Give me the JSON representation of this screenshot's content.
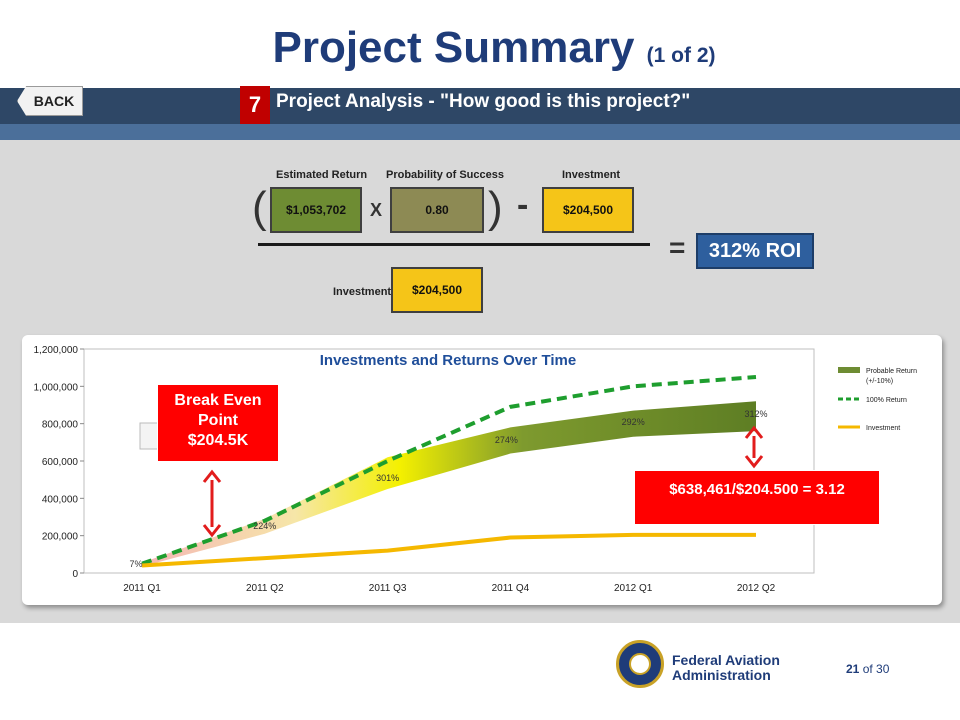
{
  "slide": {
    "title": "Project Summary",
    "title_suffix": "(1 of 2)",
    "back_label": "BACK",
    "step_number": "7",
    "step_title": "Project Analysis - \"How good is this project?\""
  },
  "formula": {
    "estimated_return_label": "Estimated Return",
    "estimated_return_value": "$1,053,702",
    "multiply_symbol": "X",
    "probability_label": "Probability of Success",
    "probability_value": "0.80",
    "minus_symbol": "-",
    "investment_label": "Investment",
    "investment_value": "$204,500",
    "open_paren": "(",
    "close_paren": ")",
    "equals_symbol": "=",
    "denominator_label": "Investment",
    "denominator_value": "$204,500",
    "roi_value": "312%  ROI"
  },
  "callouts": {
    "break_even": "Break Even Point $204.5K",
    "ratio": "$638,461/$204.500 = 3.12"
  },
  "colors": {
    "title_blue": "#1f3c79",
    "band": "#2e4766",
    "callout_red": "#ff0000",
    "return_green": "#1e9e2e",
    "investment_gold": "#f5b800"
  },
  "chart_data": {
    "type": "area",
    "title": "Investments and Returns Over Time",
    "x": [
      "2011 Q1",
      "2011 Q2",
      "2011 Q3",
      "2011 Q4",
      "2012 Q1",
      "2012 Q2"
    ],
    "yticks": [
      "0",
      "200,000",
      "400,000",
      "600,000",
      "800,000",
      "1,000,000",
      "1,200,000"
    ],
    "ylim": [
      0,
      1200000
    ],
    "series": [
      {
        "name": "100% Return",
        "values": [
          50000,
          280000,
          600000,
          890000,
          1000000,
          1050000
        ]
      },
      {
        "name": "Probable Return (+/-10%)",
        "values": [
          45000,
          250000,
          540000,
          710000,
          810000,
          840000
        ],
        "band_low": [
          35000,
          210000,
          450000,
          640000,
          730000,
          760000
        ],
        "band_high": [
          55000,
          290000,
          620000,
          780000,
          870000,
          920000
        ]
      },
      {
        "name": "Investment",
        "values": [
          40000,
          80000,
          120000,
          190000,
          204500,
          204500
        ]
      }
    ],
    "roi_labels": [
      "7%",
      "224%",
      "301%",
      "274%",
      "292%",
      "312%"
    ],
    "legend": [
      "Probable Return",
      "(+/-10%)",
      "100% Return",
      "Investment"
    ],
    "legend_position": "right"
  }
}
